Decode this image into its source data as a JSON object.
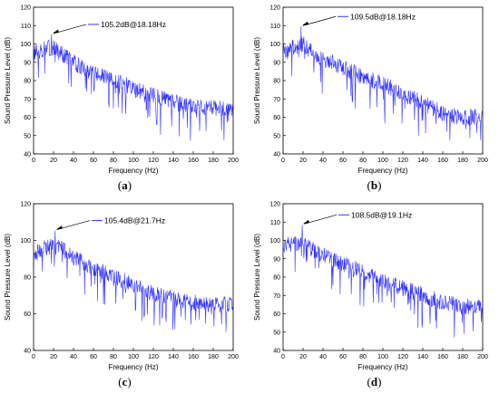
{
  "chart_data": [
    {
      "type": "line",
      "caption_letter": "a",
      "xlabel": "Frequency (Hz)",
      "ylabel": "Sound Pressure Level (dB)",
      "xlim": [
        0,
        200
      ],
      "ylim": [
        40,
        120
      ],
      "xticks": [
        0,
        20,
        40,
        60,
        80,
        100,
        120,
        140,
        160,
        180,
        200
      ],
      "yticks": [
        40,
        50,
        60,
        70,
        80,
        90,
        100,
        110,
        120
      ],
      "annotation": "105.2dB@18.18Hz",
      "peak": {
        "x": 18.18,
        "y": 105.2
      },
      "series": [
        {
          "color": "#3333ff",
          "x": [
            0,
            10,
            20,
            30,
            40,
            50,
            60,
            80,
            100,
            120,
            140,
            160,
            180,
            200
          ],
          "y": [
            95,
            97,
            98,
            94,
            90,
            87,
            84,
            80,
            76,
            72,
            68,
            66,
            65,
            64
          ]
        }
      ]
    },
    {
      "type": "line",
      "caption_letter": "b",
      "xlabel": "Frequency (Hz)",
      "ylabel": "Sound Pressure Level (dB)",
      "xlim": [
        0,
        200
      ],
      "ylim": [
        40,
        120
      ],
      "xticks": [
        0,
        20,
        40,
        60,
        80,
        100,
        120,
        140,
        160,
        180,
        200
      ],
      "yticks": [
        40,
        50,
        60,
        70,
        80,
        90,
        100,
        110,
        120
      ],
      "annotation": "109.5dB@18.18Hz",
      "peak": {
        "x": 18.18,
        "y": 109.5
      },
      "series": [
        {
          "color": "#3333ff",
          "x": [
            0,
            10,
            20,
            30,
            40,
            50,
            60,
            80,
            100,
            120,
            140,
            160,
            180,
            200
          ],
          "y": [
            96,
            98,
            100,
            95,
            92,
            90,
            87,
            82,
            78,
            73,
            68,
            62,
            60,
            60
          ]
        }
      ]
    },
    {
      "type": "line",
      "caption_letter": "c",
      "xlabel": "Frequency (Hz)",
      "ylabel": "Sound Pressure Level (dB)",
      "xlim": [
        0,
        200
      ],
      "ylim": [
        40,
        120
      ],
      "xticks": [
        0,
        20,
        40,
        60,
        80,
        100,
        120,
        140,
        160,
        180,
        200
      ],
      "yticks": [
        40,
        60,
        80,
        100,
        120
      ],
      "annotation": "105.4dB@21.7Hz",
      "peak": {
        "x": 21.7,
        "y": 105.4
      },
      "series": [
        {
          "color": "#3333ff",
          "x": [
            0,
            10,
            20,
            30,
            40,
            50,
            60,
            80,
            100,
            120,
            140,
            160,
            180,
            200
          ],
          "y": [
            92,
            96,
            97,
            95,
            91,
            88,
            85,
            80,
            76,
            71,
            68,
            66,
            65,
            65
          ]
        }
      ]
    },
    {
      "type": "line",
      "caption_letter": "d",
      "xlabel": "Frequency (Hz)",
      "ylabel": "Sound Pressure Level (dB)",
      "xlim": [
        0,
        200
      ],
      "ylim": [
        40,
        120
      ],
      "xticks": [
        0,
        20,
        40,
        60,
        80,
        100,
        120,
        140,
        160,
        180,
        200
      ],
      "yticks": [
        40,
        50,
        60,
        70,
        80,
        90,
        100,
        110,
        120
      ],
      "annotation": "108.5dB@19.1Hz",
      "peak": {
        "x": 19.1,
        "y": 108.5
      },
      "series": [
        {
          "color": "#3333ff",
          "x": [
            0,
            10,
            20,
            30,
            40,
            50,
            60,
            80,
            100,
            120,
            140,
            160,
            180,
            200
          ],
          "y": [
            97,
            98,
            99,
            95,
            92,
            90,
            87,
            83,
            78,
            74,
            70,
            66,
            64,
            64
          ]
        }
      ]
    }
  ]
}
